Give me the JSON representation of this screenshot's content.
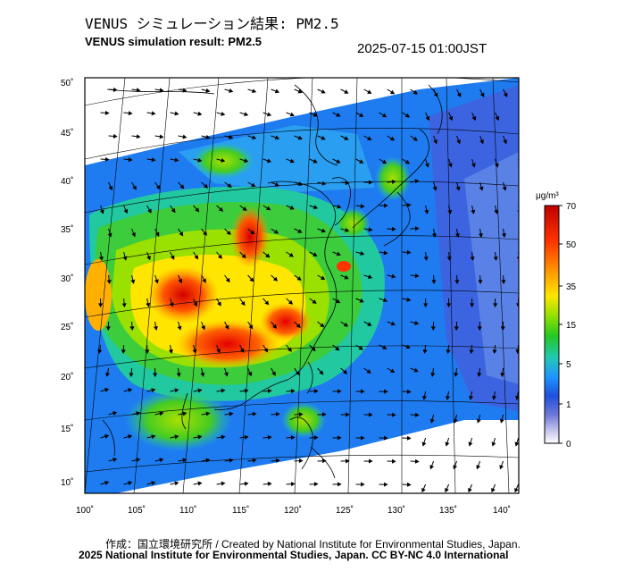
{
  "header": {
    "title_jp": "VENUS シミュレーション結果: PM2.5",
    "title_en": "VENUS simulation result: PM2.5",
    "timestamp": "2025-07-15 01:00JST"
  },
  "map": {
    "lon_ticks": [
      "100˚",
      "105˚",
      "110˚",
      "115˚",
      "120˚",
      "125˚",
      "130˚",
      "135˚",
      "140˚"
    ],
    "lat_ticks": [
      "50˚",
      "45˚",
      "40˚",
      "35˚",
      "30˚",
      "25˚",
      "20˚",
      "15˚",
      "10˚"
    ],
    "lon_range": [
      100,
      142
    ],
    "lat_range": [
      9,
      51
    ]
  },
  "colorbar": {
    "unit": "μg/m³",
    "ticks": [
      "70",
      "50",
      "35",
      "15",
      "5",
      "1",
      "0"
    ],
    "colors": [
      "#bf0000",
      "#ff3300",
      "#ff9900",
      "#ffe600",
      "#99e000",
      "#22c822",
      "#22c8b4",
      "#1e96ff",
      "#1e50dc",
      "#6e78d8",
      "#c8c8f0",
      "#ffffff"
    ]
  },
  "footer": {
    "credit": "作成：国立環境研究所 / Created by National Institute for Environmental Studies, Japan.",
    "copyright": "2025 National Institute for Environmental Studies, Japan. CC BY-NC 4.0 International"
  }
}
